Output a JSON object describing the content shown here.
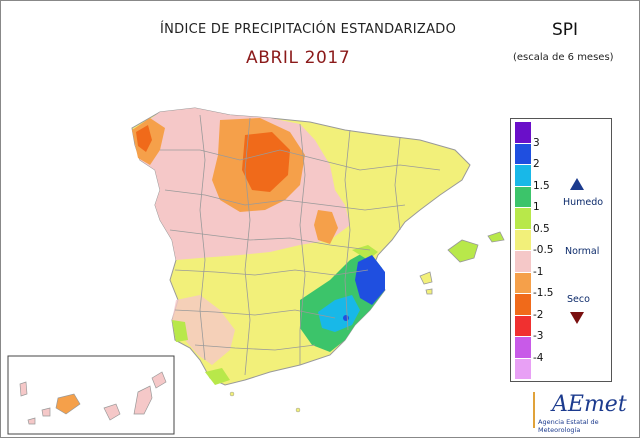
{
  "header": {
    "title": "ÍNDICE DE PRECIPITACIÓN ESTANDARIZADO",
    "subtitle": "ABRIL 2017",
    "index_name": "SPI",
    "scale_note": "(escala de 6 meses)"
  },
  "legend": {
    "ticks": [
      "3",
      "2",
      "1.5",
      "1",
      "0.5",
      "-0.5",
      "-1",
      "-1.5",
      "-2",
      "-3",
      "-4"
    ],
    "swatch_colors": [
      "#6a0fc9",
      "#1f4fe0",
      "#18b8e8",
      "#3cc46a",
      "#b8e84a",
      "#f2f07a",
      "#f5c8c8",
      "#f5a04a",
      "#f06a1a",
      "#f03030",
      "#c85ae8",
      "#e8a0f5"
    ],
    "categories": {
      "humid": "Humedo",
      "normal": "Normal",
      "dry": "Seco"
    },
    "humid_color": "#1c3b8e",
    "dry_color": "#7a1010"
  },
  "logo": {
    "name": "AEmet",
    "agency": "Agencia Estatal de Meteorología"
  }
}
